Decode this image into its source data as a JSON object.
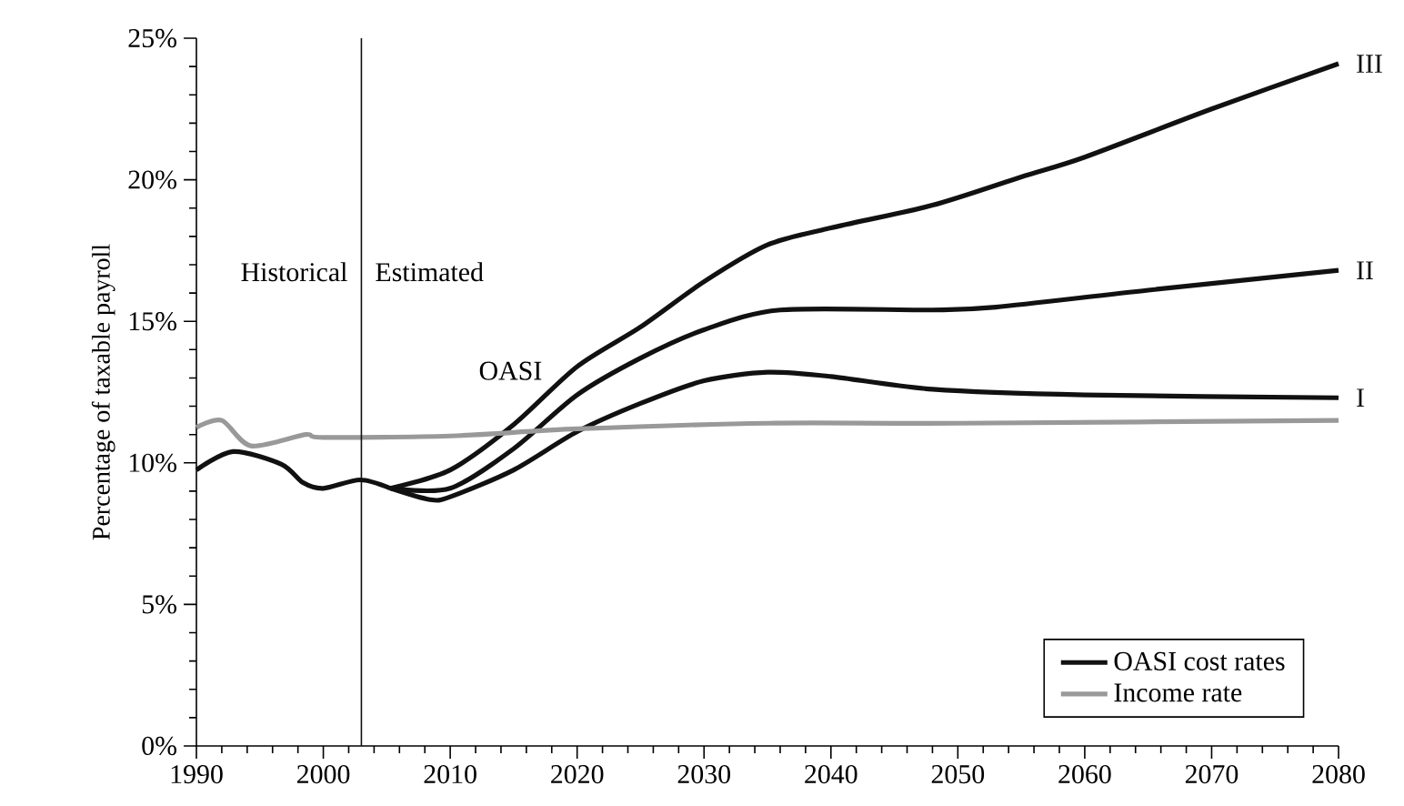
{
  "chart_data": {
    "type": "line",
    "ylabel": "Percentage of taxable payroll",
    "xlim": [
      1990,
      2080
    ],
    "xticks": [
      1990,
      2000,
      2010,
      2020,
      2030,
      2040,
      2050,
      2060,
      2070,
      2080
    ],
    "ylim": [
      0,
      25
    ],
    "yticks": [
      {
        "value": 0,
        "label": "0%"
      },
      {
        "value": 5,
        "label": "5%"
      },
      {
        "value": 10,
        "label": "10%"
      },
      {
        "value": 15,
        "label": "15%"
      },
      {
        "value": 20,
        "label": "20%"
      },
      {
        "value": 25,
        "label": "25%"
      }
    ],
    "series": [
      {
        "name": "OASI cost rates",
        "color": "#111111",
        "x": [
          1990,
          1992.9,
          1996.7,
          1998.4,
          2000,
          2002.9,
          2005.3
        ],
        "values": [
          9.75,
          10.4,
          9.95,
          9.3,
          9.1,
          9.4,
          9.1
        ]
      },
      {
        "name": "I",
        "color": "#111111",
        "x": [
          2005.3,
          2008.4,
          2010,
          2015,
          2020,
          2025,
          2030,
          2035,
          2040,
          2048,
          2060,
          2080
        ],
        "values": [
          9.1,
          8.7,
          8.8,
          9.75,
          11.1,
          12.1,
          12.9,
          13.2,
          13.05,
          12.6,
          12.4,
          12.3
        ]
      },
      {
        "name": "II",
        "color": "#111111",
        "x": [
          2005.3,
          2010,
          2015,
          2020,
          2025,
          2030,
          2036,
          2048,
          2053,
          2065,
          2080
        ],
        "values": [
          9.1,
          9.1,
          10.5,
          12.4,
          13.7,
          14.7,
          15.4,
          15.4,
          15.5,
          16.1,
          16.8
        ]
      },
      {
        "name": "III",
        "color": "#111111",
        "x": [
          2005.3,
          2010,
          2015,
          2020,
          2025,
          2030,
          2035,
          2040,
          2048,
          2055,
          2060,
          2070,
          2080
        ],
        "values": [
          9.1,
          9.75,
          11.35,
          13.4,
          14.8,
          16.4,
          17.7,
          18.3,
          19.1,
          20.1,
          20.8,
          22.5,
          24.1
        ]
      },
      {
        "name": "Income rate",
        "color": "#999999",
        "x": [
          1990,
          1992,
          1994.3,
          1998.6,
          2000,
          2010,
          2020,
          2035,
          2050,
          2080
        ],
        "values": [
          11.25,
          11.5,
          10.6,
          11.0,
          10.9,
          10.95,
          11.2,
          11.4,
          11.4,
          11.5
        ]
      }
    ],
    "ref_lines": [
      {
        "axis": "x",
        "value": 2003,
        "color": "#111111"
      }
    ],
    "annotations": [
      "Historical",
      "Estimated",
      "OASI"
    ],
    "legend": "bottom right",
    "grid": false
  }
}
